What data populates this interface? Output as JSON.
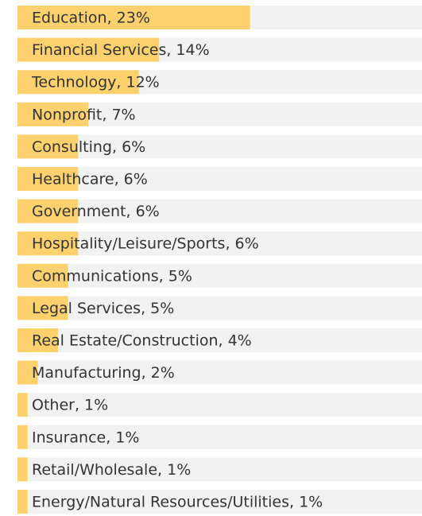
{
  "chart_data": {
    "type": "bar",
    "orientation": "horizontal",
    "categories": [
      "Education, 23%",
      "Financial Services, 14%",
      "Technology, 12%",
      "Nonprofit, 7%",
      "Consulting, 6%",
      "Healthcare, 6%",
      "Government, 6%",
      "Hospitality/Leisure/Sports, 6%",
      "Communications, 5%",
      "Legal Services, 5%",
      "Real Estate/Construction, 4%",
      "Manufacturing, 2%",
      "Other, 1%",
      "Insurance, 1%",
      "Retail/Wholesale, 1%",
      "Energy/Natural Resources/Utilities, 1%"
    ],
    "values": [
      23,
      14,
      12,
      7,
      6,
      6,
      6,
      6,
      5,
      5,
      4,
      2,
      1,
      1,
      1,
      1
    ],
    "color": "#fdd26e",
    "track_color": "#f2f2f2",
    "xlim": [
      0,
      40
    ]
  }
}
